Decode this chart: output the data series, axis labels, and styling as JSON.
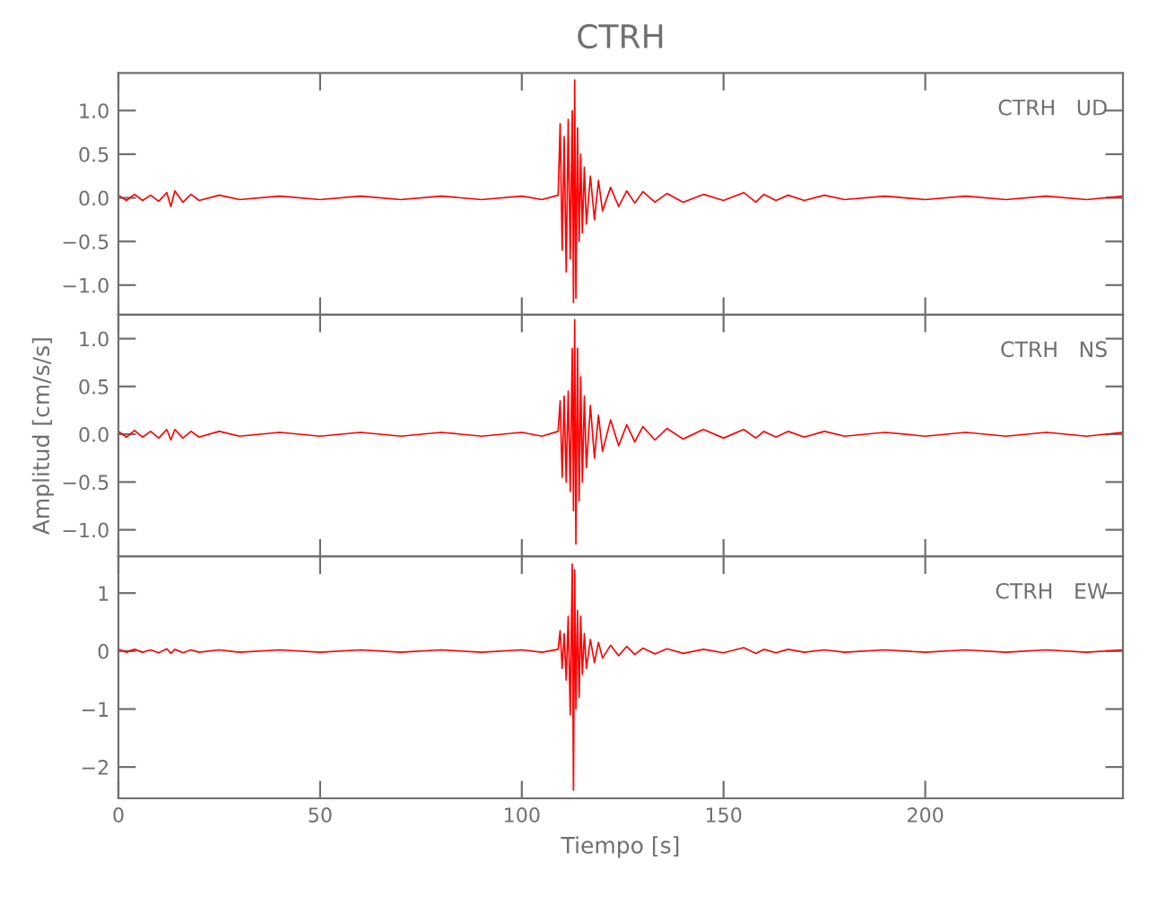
{
  "chart_data": [
    {
      "type": "line",
      "title": "CTRH",
      "annotations": [
        "CTRH   UD"
      ],
      "tick_labels": "y",
      "grid": false,
      "legend": false,
      "xlim": [
        0,
        249
      ],
      "ylim": [
        -1.34,
        1.43
      ],
      "yticks": [
        {
          "value": -1.0,
          "label": "−1.0"
        },
        {
          "value": -0.5,
          "label": "−0.5"
        },
        {
          "value": 0.0,
          "label": "0.0"
        },
        {
          "value": 0.5,
          "label": "0.5"
        },
        {
          "value": 1.0,
          "label": "1.0"
        }
      ],
      "x": [
        0,
        2,
        4,
        6,
        8,
        10,
        12,
        13,
        14,
        16,
        18,
        20,
        25,
        30,
        40,
        50,
        60,
        70,
        80,
        90,
        100,
        105,
        109,
        109.5,
        110,
        110.5,
        111,
        111.5,
        112,
        112.5,
        112.8,
        113.1,
        113.4,
        113.8,
        114.2,
        114.6,
        115,
        115.5,
        116,
        117,
        118,
        119,
        120,
        122,
        124,
        126,
        128,
        130,
        133,
        136,
        140,
        145,
        150,
        155,
        158,
        160,
        163,
        166,
        170,
        175,
        180,
        190,
        200,
        210,
        220,
        230,
        240,
        249
      ],
      "series": [
        {
          "color": "#ff0000",
          "values": [
            0.03,
            -0.03,
            0.04,
            -0.03,
            0.03,
            -0.04,
            0.06,
            -0.1,
            0.08,
            -0.05,
            0.04,
            -0.03,
            0.03,
            -0.02,
            0.02,
            -0.02,
            0.02,
            -0.02,
            0.02,
            -0.02,
            0.02,
            -0.02,
            0.03,
            0.85,
            -0.6,
            0.7,
            -0.85,
            0.9,
            -0.7,
            1.0,
            -1.2,
            1.35,
            -1.15,
            0.8,
            -0.5,
            0.5,
            -0.4,
            0.35,
            -0.3,
            0.25,
            -0.25,
            0.2,
            -0.15,
            0.12,
            -0.1,
            0.08,
            -0.06,
            0.07,
            -0.05,
            0.05,
            -0.05,
            0.04,
            -0.03,
            0.06,
            -0.05,
            0.04,
            -0.03,
            0.03,
            -0.03,
            0.03,
            -0.02,
            0.02,
            -0.02,
            0.02,
            -0.02,
            0.02,
            -0.02,
            0.02
          ]
        }
      ]
    },
    {
      "type": "line",
      "ylabel": "Amplitud [cm/s/s]",
      "annotations": [
        "CTRH   NS"
      ],
      "tick_labels": "y",
      "grid": false,
      "legend": false,
      "xlim": [
        0,
        249
      ],
      "ylim": [
        -1.28,
        1.25
      ],
      "yticks": [
        {
          "value": -1.0,
          "label": "−1.0"
        },
        {
          "value": -0.5,
          "label": "−0.5"
        },
        {
          "value": 0.0,
          "label": "0.0"
        },
        {
          "value": 0.5,
          "label": "0.5"
        },
        {
          "value": 1.0,
          "label": "1.0"
        }
      ],
      "x": [
        0,
        2,
        4,
        6,
        8,
        10,
        12,
        13,
        14,
        16,
        18,
        20,
        25,
        30,
        40,
        50,
        60,
        70,
        80,
        90,
        100,
        105,
        109,
        109.5,
        110,
        110.5,
        111,
        111.5,
        112,
        112.5,
        112.8,
        113.1,
        113.4,
        113.8,
        114.2,
        114.6,
        115,
        115.5,
        116,
        117,
        118,
        119,
        120,
        122,
        124,
        126,
        128,
        130,
        133,
        136,
        140,
        145,
        150,
        155,
        158,
        160,
        163,
        166,
        170,
        175,
        180,
        190,
        200,
        210,
        220,
        230,
        240,
        249
      ],
      "series": [
        {
          "color": "#ff0000",
          "values": [
            0.03,
            -0.03,
            0.04,
            -0.03,
            0.03,
            -0.04,
            0.05,
            -0.06,
            0.05,
            -0.04,
            0.03,
            -0.03,
            0.03,
            -0.02,
            0.02,
            -0.02,
            0.02,
            -0.02,
            0.02,
            -0.02,
            0.02,
            -0.02,
            0.03,
            0.35,
            -0.45,
            0.4,
            -0.5,
            0.45,
            -0.6,
            0.9,
            -0.8,
            1.2,
            -1.15,
            0.9,
            -0.7,
            0.6,
            -0.5,
            0.4,
            -0.35,
            0.3,
            -0.25,
            0.2,
            -0.18,
            0.15,
            -0.12,
            0.1,
            -0.08,
            0.08,
            -0.06,
            0.06,
            -0.05,
            0.05,
            -0.04,
            0.05,
            -0.04,
            0.03,
            -0.03,
            0.03,
            -0.03,
            0.03,
            -0.02,
            0.02,
            -0.02,
            0.02,
            -0.02,
            0.02,
            -0.02,
            0.02
          ]
        }
      ]
    },
    {
      "type": "line",
      "xlabel": "Tiempo [s]",
      "annotations": [
        "CTRH   EW"
      ],
      "grid": false,
      "legend": false,
      "xlim": [
        0,
        249
      ],
      "ylim": [
        -2.54,
        1.63
      ],
      "xticks": [
        0,
        50,
        100,
        150,
        200
      ],
      "yticks": [
        {
          "value": -2,
          "label": "−2"
        },
        {
          "value": -1,
          "label": "−1"
        },
        0,
        1
      ],
      "x": [
        0,
        2,
        4,
        6,
        8,
        10,
        12,
        13,
        14,
        16,
        18,
        20,
        25,
        30,
        40,
        50,
        60,
        70,
        80,
        90,
        100,
        105,
        109,
        109.5,
        110,
        110.5,
        111,
        111.5,
        112,
        112.5,
        112.8,
        113.1,
        113.4,
        113.8,
        114.2,
        114.6,
        115,
        115.5,
        116,
        117,
        118,
        119,
        120,
        122,
        124,
        126,
        128,
        130,
        133,
        136,
        140,
        145,
        150,
        155,
        158,
        160,
        163,
        166,
        170,
        175,
        180,
        190,
        200,
        210,
        220,
        230,
        240,
        249
      ],
      "series": [
        {
          "color": "#ff0000",
          "values": [
            0.03,
            -0.02,
            0.03,
            -0.02,
            0.02,
            -0.03,
            0.04,
            -0.04,
            0.03,
            -0.03,
            0.02,
            -0.02,
            0.02,
            -0.02,
            0.02,
            -0.02,
            0.02,
            -0.02,
            0.02,
            -0.02,
            0.02,
            -0.02,
            0.03,
            0.35,
            -0.3,
            0.3,
            -0.5,
            0.6,
            -1.1,
            1.5,
            -2.4,
            1.4,
            -1.0,
            0.7,
            -0.8,
            0.6,
            -0.4,
            0.3,
            -0.3,
            0.2,
            -0.2,
            0.15,
            -0.12,
            0.1,
            -0.08,
            0.08,
            -0.06,
            0.05,
            -0.05,
            0.04,
            -0.04,
            0.03,
            -0.03,
            0.06,
            -0.04,
            0.03,
            -0.03,
            0.03,
            -0.02,
            0.02,
            -0.02,
            0.02,
            -0.02,
            0.02,
            -0.02,
            0.02,
            -0.02,
            0.02
          ]
        }
      ]
    }
  ]
}
